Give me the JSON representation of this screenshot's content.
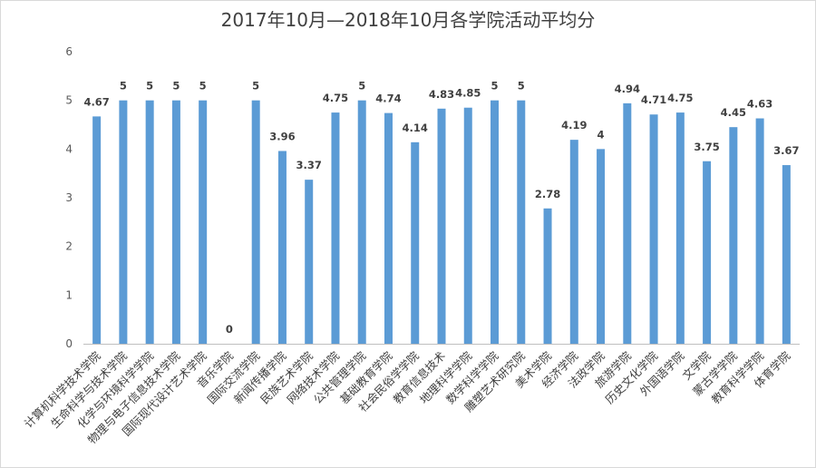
{
  "chart_data": {
    "type": "bar",
    "title": "2017年10月—2018年10月各学院活动平均分",
    "xlabel": "",
    "ylabel": "",
    "ylim": [
      0,
      6
    ],
    "yticks": [
      0,
      1,
      2,
      3,
      4,
      5,
      6
    ],
    "grid": false,
    "legend": "none",
    "bar_color": "#5b9bd5",
    "categories": [
      "计算机科学技术学院",
      "生命科学与技术学院",
      "化学与环境科学学院",
      "物理与电子信息技术学院",
      "国际现代设计艺术学院",
      "音乐学院",
      "国际交流学院",
      "新闻传播学院",
      "民族艺术学院",
      "网络技术学院",
      "公共管理学院",
      "基础教育学院",
      "社会民俗学学院",
      "教育信息技术",
      "地理科学学院",
      "数学科学学院",
      "雕塑艺术研究院",
      "美术学院",
      "经济学院",
      "法政学院",
      "旅游学院",
      "历史文化学院",
      "外国语学院",
      "文学院",
      "蒙古学学院",
      "教育科学学院",
      "体育学院"
    ],
    "values": [
      4.67,
      5,
      5,
      5,
      5,
      0,
      5,
      3.96,
      3.37,
      4.75,
      5,
      4.74,
      4.14,
      4.83,
      4.85,
      5,
      5,
      2.78,
      4.19,
      4,
      4.94,
      4.71,
      4.75,
      3.75,
      4.45,
      4.63,
      3.67
    ],
    "data_labels": [
      "4.67",
      "5",
      "5",
      "5",
      "5",
      "0",
      "5",
      "3.96",
      "3.37",
      "4.75",
      "5",
      "4.74",
      "4.14",
      "4.83",
      "4.85",
      "5",
      "5",
      "2.78",
      "4.19",
      "4",
      "4.94",
      "4.71",
      "4.75",
      "3.75",
      "4.45",
      "4.63",
      "3.67"
    ]
  }
}
